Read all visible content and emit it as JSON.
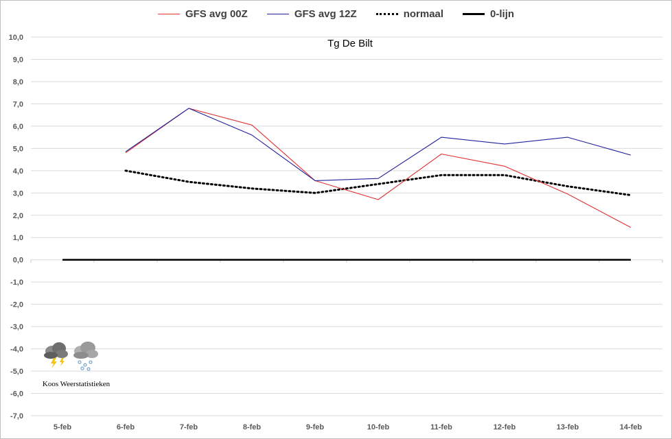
{
  "chart_data": {
    "type": "line",
    "title": "Tg De Bilt",
    "categories": [
      "5-feb",
      "6-feb",
      "7-feb",
      "8-feb",
      "9-feb",
      "10-feb",
      "11-feb",
      "12-feb",
      "13-feb",
      "14-feb"
    ],
    "ylim": [
      -7.0,
      10.0
    ],
    "yticks": [
      "10,0",
      "9,0",
      "8,0",
      "7,0",
      "6,0",
      "5,0",
      "4,0",
      "3,0",
      "2,0",
      "1,0",
      "0,0",
      "-1,0",
      "-2,0",
      "-3,0",
      "-4,0",
      "-5,0",
      "-6,0",
      "-7,0"
    ],
    "grid": true,
    "legend_position": "top",
    "series": [
      {
        "name": "GFS avg 00Z",
        "color": "#e03030",
        "style": "solid-thin",
        "values": [
          null,
          4.8,
          6.8,
          6.05,
          3.55,
          2.7,
          4.75,
          4.2,
          2.95,
          1.45
        ]
      },
      {
        "name": "GFS avg 12Z",
        "color": "#1f1f9e",
        "style": "solid-thin",
        "values": [
          null,
          4.85,
          6.8,
          5.6,
          3.55,
          3.65,
          5.5,
          5.2,
          5.5,
          4.7
        ]
      },
      {
        "name": "normaal",
        "color": "#000000",
        "style": "dotted",
        "values": [
          null,
          4.0,
          3.5,
          3.2,
          3.0,
          3.4,
          3.8,
          3.8,
          3.3,
          2.9
        ]
      },
      {
        "name": "0-lijn",
        "color": "#000000",
        "style": "solid-thick",
        "values": [
          0,
          0,
          0,
          0,
          0,
          0,
          0,
          0,
          0,
          0
        ]
      }
    ]
  },
  "logo": {
    "text": "Koos Weerstatistieken",
    "icons": [
      "thunderstorm-cloud-icon",
      "snow-cloud-icon"
    ]
  }
}
